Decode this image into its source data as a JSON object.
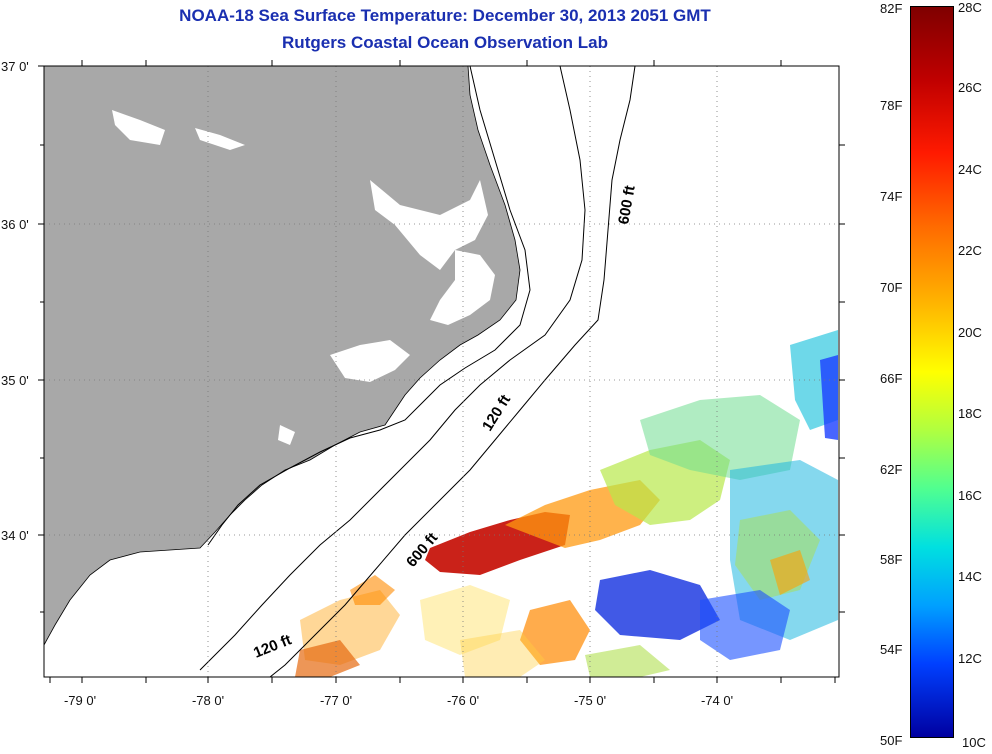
{
  "title": {
    "line1": "NOAA-18 Sea Surface Temperature:  December 30, 2013 2051 GMT",
    "line2": "Rutgers Coastal Ocean Observation Lab"
  },
  "map": {
    "lat_labels": [
      "37 0'",
      "36 0'",
      "35 0'",
      "34 0'"
    ],
    "lon_labels": [
      "-79 0'",
      "-78 0'",
      "-77 0'",
      "-76 0'",
      "-75 0'",
      "-74 0'"
    ],
    "isobath_labels": [
      "600 ft",
      "120 ft",
      "600 ft",
      "120 ft"
    ],
    "land_color": "#a8a8a8",
    "water_color": "#ffffff"
  },
  "colorbar": {
    "fahrenheit": [
      "82F",
      "78F",
      "74F",
      "70F",
      "66F",
      "62F",
      "58F",
      "54F",
      "50F"
    ],
    "celsius": [
      "28C",
      "26C",
      "24C",
      "22C",
      "20C",
      "18C",
      "16C",
      "14C",
      "12C",
      "10C"
    ]
  }
}
